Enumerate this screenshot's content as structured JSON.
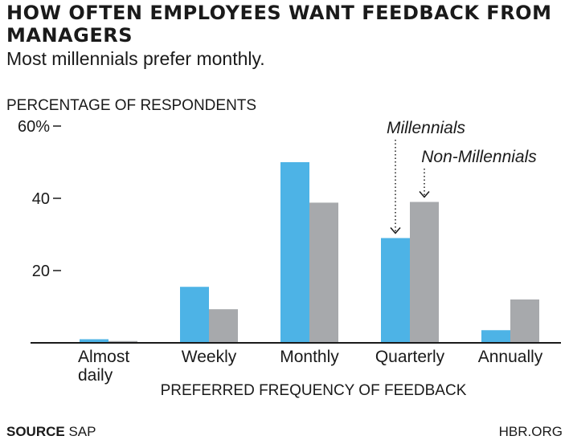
{
  "header": {
    "title": "HOW OFTEN EMPLOYEES WANT FEEDBACK FROM MANAGERS",
    "subtitle": "Most millennials prefer monthly."
  },
  "footer": {
    "source_label": "SOURCE",
    "source_value": "SAP",
    "brand": "HBR.ORG"
  },
  "colors": {
    "millennials": "#4db3e6",
    "non_millennials": "#a7a9ac",
    "axis": "#1a1a1a"
  },
  "chart_data": {
    "type": "bar",
    "ylabel": "PERCENTAGE OF RESPONDENTS",
    "xlabel": "PREFERRED FREQUENCY OF FEEDBACK",
    "ylim": [
      0,
      60
    ],
    "yticks": [
      20,
      40,
      60
    ],
    "ytick_labels": [
      "20",
      "40",
      "60%"
    ],
    "grid": false,
    "categories": [
      "Almost daily",
      "Weekly",
      "Monthly",
      "Quarterly",
      "Annually"
    ],
    "category_lines": [
      [
        "Almost",
        "daily"
      ],
      [
        "Weekly"
      ],
      [
        "Monthly"
      ],
      [
        "Quarterly"
      ],
      [
        "Annually"
      ]
    ],
    "series": [
      {
        "name": "Millennials",
        "values": [
          1,
          15.5,
          50,
          29,
          3.5
        ]
      },
      {
        "name": "Non-Millennials",
        "values": [
          0.5,
          9.3,
          38.8,
          39,
          12
        ]
      }
    ],
    "annotations": [
      {
        "text": "Millennials",
        "category": "Quarterly",
        "series": "Millennials"
      },
      {
        "text": "Non-Millennials",
        "category": "Quarterly",
        "series": "Non-Millennials"
      }
    ]
  }
}
